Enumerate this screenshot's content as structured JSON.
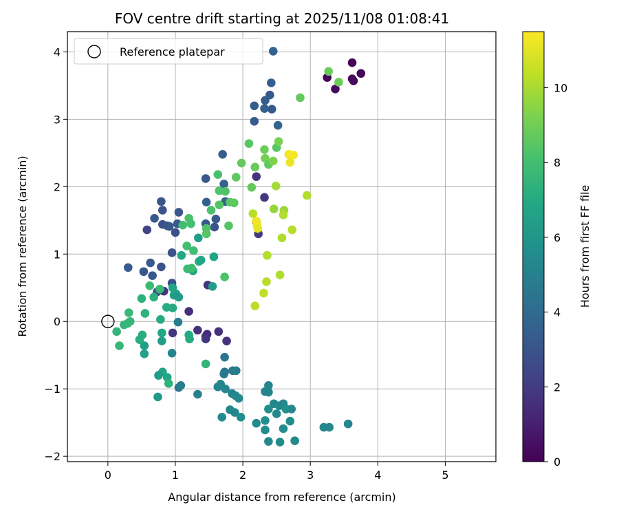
{
  "chart_data": {
    "type": "scatter",
    "title": "FOV centre drift starting at 2025/11/08 01:08:41",
    "xlabel": "Angular distance from reference (arcmin)",
    "ylabel": "Rotation from reference (arcmin)",
    "colorbar_label": "Hours from first FF file",
    "xlim": [
      -0.6,
      5.75
    ],
    "ylim": [
      -2.08,
      4.3
    ],
    "clim": [
      0,
      11.5
    ],
    "x_ticks": [
      0,
      1,
      2,
      3,
      4,
      5
    ],
    "y_ticks": [
      -2,
      -1,
      0,
      1,
      2,
      3,
      4
    ],
    "colorbar_ticks": [
      0,
      2,
      4,
      6,
      8,
      10
    ],
    "x_tick_labels": [
      "0",
      "1",
      "2",
      "3",
      "4",
      "5"
    ],
    "y_tick_labels": [
      "−2",
      "−1",
      "0",
      "1",
      "2",
      "3",
      "4"
    ],
    "colorbar_tick_labels": [
      "0",
      "2",
      "4",
      "6",
      "8",
      "10"
    ],
    "grid": true,
    "legend": {
      "position": "top-left",
      "entries": [
        "Reference platepar"
      ]
    },
    "reference_point": {
      "x": 0,
      "y": 0,
      "label": "Reference platepar"
    },
    "points": [
      [
        3.25,
        3.62,
        0.1
      ],
      [
        3.62,
        3.84,
        0.15
      ],
      [
        3.75,
        3.68,
        0.2
      ],
      [
        3.37,
        3.45,
        0.3
      ],
      [
        3.64,
        3.57,
        0.25
      ],
      [
        3.62,
        3.6,
        0.35
      ],
      [
        2.45,
        4.01,
        3.6
      ],
      [
        2.42,
        3.54,
        3.5
      ],
      [
        2.4,
        3.36,
        3.3
      ],
      [
        2.33,
        3.28,
        3.4
      ],
      [
        2.32,
        3.16,
        3.5
      ],
      [
        2.43,
        3.15,
        3.2
      ],
      [
        2.17,
        3.2,
        3.4
      ],
      [
        2.17,
        2.97,
        3.3
      ],
      [
        2.52,
        2.91,
        3.7
      ],
      [
        1.7,
        2.48,
        3.4
      ],
      [
        1.45,
        2.12,
        3.2
      ],
      [
        1.72,
        2.04,
        3.6
      ],
      [
        1.74,
        1.78,
        3.5
      ],
      [
        1.46,
        1.77,
        3.5
      ],
      [
        1.6,
        1.52,
        3.3
      ],
      [
        1.58,
        1.4,
        3.0
      ],
      [
        1.45,
        1.45,
        3.2
      ],
      [
        0.79,
        1.78,
        3.1
      ],
      [
        0.81,
        1.65,
        3.0
      ],
      [
        1.05,
        1.62,
        3.1
      ],
      [
        0.69,
        1.53,
        3.2
      ],
      [
        0.81,
        1.44,
        2.8
      ],
      [
        0.88,
        1.42,
        3.0
      ],
      [
        0.91,
        1.41,
        3.1
      ],
      [
        1.03,
        1.45,
        3.3
      ],
      [
        0.58,
        1.36,
        2.3
      ],
      [
        1.0,
        1.32,
        2.8
      ],
      [
        0.95,
        1.02,
        2.9
      ],
      [
        0.3,
        0.8,
        3.3
      ],
      [
        0.63,
        0.87,
        3.3
      ],
      [
        0.79,
        0.81,
        3.0
      ],
      [
        0.53,
        0.74,
        3.1
      ],
      [
        0.66,
        0.68,
        3.2
      ],
      [
        0.95,
        0.57,
        3.0
      ],
      [
        0.73,
        0.44,
        2.9
      ],
      [
        0.83,
        0.45,
        1.8
      ],
      [
        2.2,
        2.15,
        1.7
      ],
      [
        2.32,
        1.84,
        1.8
      ],
      [
        2.2,
        1.48,
        0.3
      ],
      [
        2.23,
        1.3,
        2.0
      ],
      [
        1.2,
        0.15,
        1.5
      ],
      [
        0.96,
        -0.17,
        1.8
      ],
      [
        1.33,
        -0.13,
        1.6
      ],
      [
        1.45,
        -0.22,
        1.5
      ],
      [
        1.47,
        -0.19,
        1.4
      ],
      [
        1.45,
        -0.26,
        1.8
      ],
      [
        1.64,
        -0.15,
        1.6
      ],
      [
        1.76,
        -0.29,
        1.7
      ],
      [
        1.48,
        0.54,
        1.7
      ],
      [
        1.04,
        -0.01,
        4.8
      ],
      [
        0.95,
        -0.47,
        5.2
      ],
      [
        1.73,
        -0.53,
        4.5
      ],
      [
        1.73,
        -0.75,
        4.2
      ],
      [
        1.72,
        -0.78,
        4.6
      ],
      [
        1.85,
        -0.73,
        4.7
      ],
      [
        1.9,
        -0.73,
        4.8
      ],
      [
        1.05,
        -0.98,
        4.5
      ],
      [
        1.08,
        -0.95,
        4.8
      ],
      [
        1.33,
        -1.08,
        5.0
      ],
      [
        1.63,
        -0.97,
        5.1
      ],
      [
        1.67,
        -0.93,
        5.2
      ],
      [
        1.74,
        -1.0,
        5.3
      ],
      [
        1.84,
        -1.07,
        5.1
      ],
      [
        1.89,
        -1.1,
        5.2
      ],
      [
        1.94,
        -1.14,
        5.4
      ],
      [
        2.38,
        -0.95,
        5.2
      ],
      [
        2.33,
        -1.04,
        5.3
      ],
      [
        2.38,
        -1.05,
        5.2
      ],
      [
        2.46,
        -1.22,
        5.3
      ],
      [
        2.54,
        -1.25,
        5.4
      ],
      [
        2.6,
        -1.22,
        5.3
      ],
      [
        2.72,
        -1.3,
        5.3
      ],
      [
        2.64,
        -1.3,
        5.6
      ],
      [
        2.5,
        -1.37,
        5.4
      ],
      [
        2.38,
        -1.3,
        5.5
      ],
      [
        1.81,
        -1.31,
        5.3
      ],
      [
        1.88,
        -1.35,
        5.3
      ],
      [
        1.97,
        -1.42,
        5.5
      ],
      [
        1.69,
        -1.42,
        5.5
      ],
      [
        2.2,
        -1.51,
        5.4
      ],
      [
        2.33,
        -1.47,
        5.6
      ],
      [
        2.33,
        -1.61,
        5.5
      ],
      [
        2.6,
        -1.59,
        5.5
      ],
      [
        2.7,
        -1.48,
        5.6
      ],
      [
        2.77,
        -1.77,
        5.4
      ],
      [
        2.55,
        -1.79,
        5.5
      ],
      [
        2.38,
        -1.78,
        5.4
      ],
      [
        3.2,
        -1.57,
        5.2
      ],
      [
        3.28,
        -1.57,
        5.3
      ],
      [
        3.56,
        -1.52,
        5.3
      ],
      [
        0.88,
        -0.83,
        6.8
      ],
      [
        0.9,
        -0.92,
        7.4
      ],
      [
        0.81,
        -0.75,
        6.7
      ],
      [
        0.75,
        -0.8,
        6.3
      ],
      [
        0.74,
        -1.12,
        6.2
      ],
      [
        0.8,
        -0.29,
        6.4
      ],
      [
        0.54,
        -0.36,
        6.5
      ],
      [
        0.54,
        -0.48,
        6.6
      ],
      [
        0.51,
        -0.2,
        7.2
      ],
      [
        0.47,
        -0.27,
        7.1
      ],
      [
        0.8,
        -0.17,
        6.8
      ],
      [
        0.78,
        0.03,
        7.0
      ],
      [
        0.96,
        0.2,
        7.0
      ],
      [
        0.87,
        0.21,
        7.1
      ],
      [
        1.2,
        -0.2,
        7.0
      ],
      [
        1.21,
        -0.26,
        7.0
      ],
      [
        1.45,
        -0.63,
        7.5
      ],
      [
        1.26,
        0.75,
        6.9
      ],
      [
        1.35,
        0.89,
        7.1
      ],
      [
        1.38,
        0.91,
        6.8
      ],
      [
        1.55,
        0.52,
        6.4
      ],
      [
        1.57,
        0.96,
        6.7
      ],
      [
        1.34,
        1.24,
        6.3
      ],
      [
        1.09,
        0.98,
        6.9
      ],
      [
        0.98,
        0.39,
        6.3
      ],
      [
        1.01,
        0.41,
        6.5
      ],
      [
        1.05,
        0.36,
        6.2
      ],
      [
        0.96,
        0.5,
        6.7
      ],
      [
        0.68,
        0.36,
        7.3
      ],
      [
        0.5,
        0.34,
        7.3
      ],
      [
        0.55,
        0.12,
        7.4
      ],
      [
        0.13,
        -0.15,
        7.5
      ],
      [
        0.17,
        -0.36,
        7.6
      ],
      [
        0.24,
        -0.05,
        7.5
      ],
      [
        0.29,
        -0.03,
        7.6
      ],
      [
        0.33,
        0.0,
        7.6
      ],
      [
        0.31,
        0.13,
        7.7
      ],
      [
        0.62,
        0.53,
        7.8
      ],
      [
        0.77,
        0.48,
        7.7
      ],
      [
        1.24,
        0.79,
        7.9
      ],
      [
        1.18,
        0.78,
        7.8
      ],
      [
        1.27,
        1.05,
        7.9
      ],
      [
        1.17,
        1.12,
        8.0
      ],
      [
        1.11,
        1.43,
        8.0
      ],
      [
        1.2,
        1.53,
        8.2
      ],
      [
        1.23,
        1.45,
        8.1
      ],
      [
        1.46,
        1.38,
        8.3
      ],
      [
        1.46,
        1.3,
        8.4
      ],
      [
        1.53,
        1.65,
        8.2
      ],
      [
        1.65,
        1.73,
        8.4
      ],
      [
        1.65,
        1.94,
        8.3
      ],
      [
        1.63,
        2.18,
        8.1
      ],
      [
        1.74,
        1.93,
        8.3
      ],
      [
        1.81,
        1.77,
        8.5
      ],
      [
        1.87,
        1.76,
        8.6
      ],
      [
        1.79,
        1.42,
        8.4
      ],
      [
        1.73,
        0.66,
        8.2
      ],
      [
        1.9,
        2.14,
        8.6
      ],
      [
        1.98,
        2.35,
        8.7
      ],
      [
        2.09,
        2.64,
        8.5
      ],
      [
        2.13,
        1.99,
        8.7
      ],
      [
        2.18,
        2.29,
        8.8
      ],
      [
        2.32,
        2.55,
        8.9
      ],
      [
        2.33,
        2.42,
        9.1
      ],
      [
        2.38,
        2.33,
        8.6
      ],
      [
        2.5,
        2.58,
        8.5
      ],
      [
        2.53,
        2.67,
        9.2
      ],
      [
        2.45,
        2.38,
        9.3
      ],
      [
        2.85,
        3.32,
        8.7
      ],
      [
        3.27,
        3.71,
        8.8
      ],
      [
        3.42,
        3.55,
        8.9
      ],
      [
        2.49,
        2.01,
        9.9
      ],
      [
        2.46,
        1.67,
        9.7
      ],
      [
        2.61,
        1.65,
        9.8
      ],
      [
        2.6,
        1.58,
        10.2
      ],
      [
        2.15,
        1.6,
        10.3
      ],
      [
        2.73,
        1.36,
        10.2
      ],
      [
        2.58,
        1.24,
        10.1
      ],
      [
        2.36,
        0.98,
        10.2
      ],
      [
        2.35,
        0.59,
        10.3
      ],
      [
        2.55,
        0.69,
        10.1
      ],
      [
        2.31,
        0.42,
        10.4
      ],
      [
        2.18,
        0.23,
        10.3
      ],
      [
        2.95,
        1.87,
        10.2
      ],
      [
        2.2,
        1.49,
        11.2
      ],
      [
        2.21,
        1.43,
        11.3
      ],
      [
        2.22,
        1.38,
        11.1
      ],
      [
        2.68,
        2.48,
        11.3
      ],
      [
        2.75,
        2.47,
        11.4
      ],
      [
        2.7,
        2.36,
        11.2
      ]
    ]
  }
}
